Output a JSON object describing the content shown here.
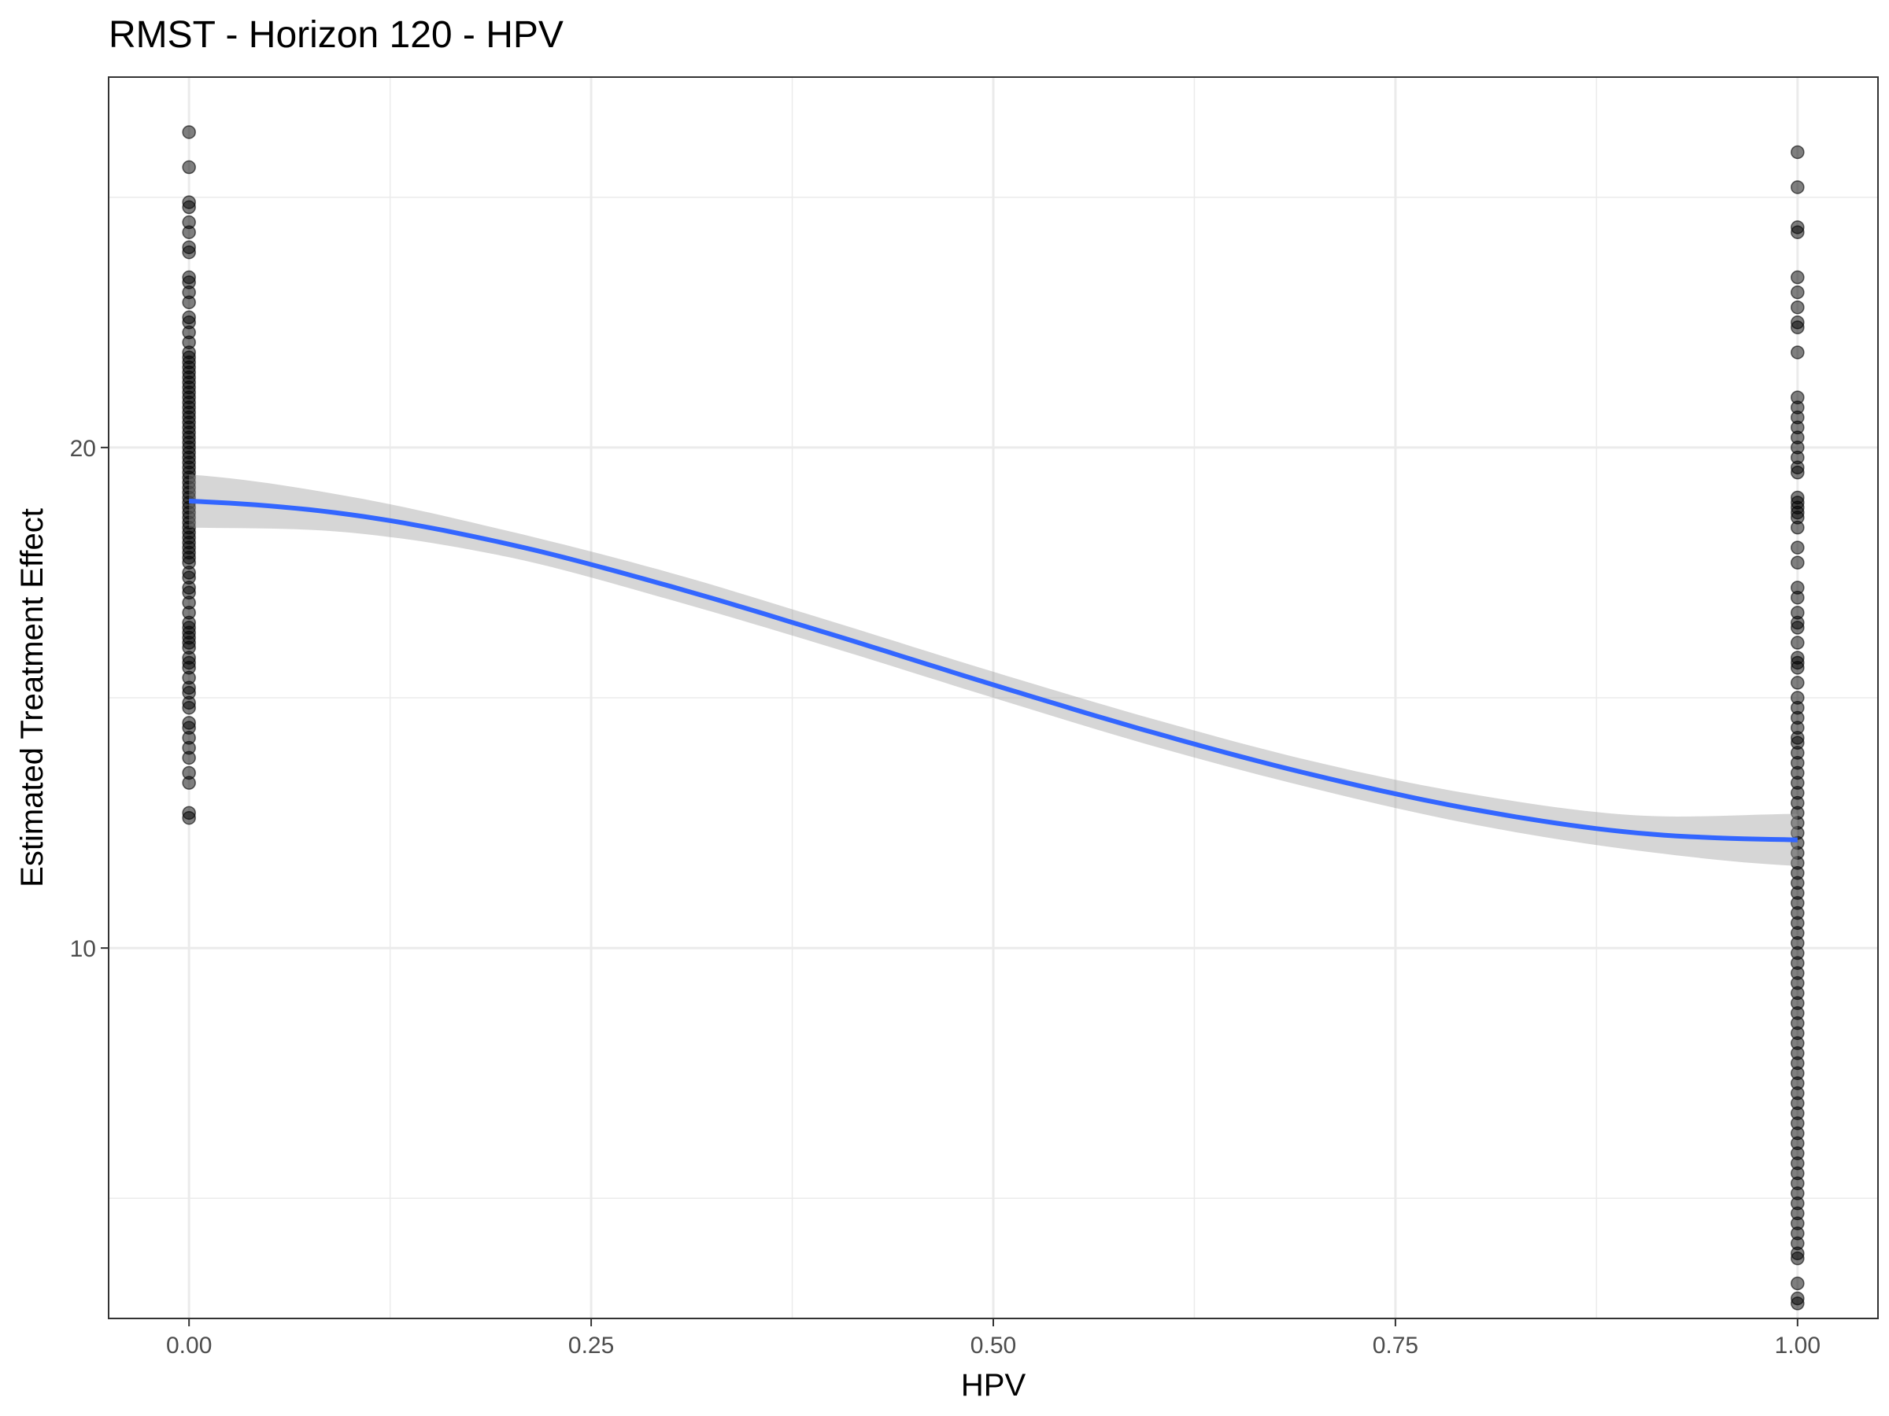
{
  "chart_data": {
    "type": "scatter",
    "title": "RMST - Horizon 120 - HPV",
    "xlabel": "HPV",
    "ylabel": "Estimated Treatment Effect",
    "xlim": [
      -0.05,
      1.05
    ],
    "ylim": [
      2.6,
      27.4
    ],
    "x_ticks": [
      0.0,
      0.25,
      0.5,
      0.75,
      1.0
    ],
    "x_tick_labels": [
      "0.00",
      "0.25",
      "0.50",
      "0.75",
      "1.00"
    ],
    "y_ticks": [
      10,
      20
    ],
    "y_tick_labels": [
      "10",
      "20"
    ],
    "x_minor_ticks": [
      0.125,
      0.375,
      0.625,
      0.875
    ],
    "y_minor_ticks": [
      5,
      15,
      25
    ],
    "grid": true,
    "legend": "none",
    "colors": {
      "points": "#000000",
      "smooth_line": "#3366FF",
      "confidence_band": "#999999",
      "grid": "#EBEBEB",
      "border": "#333333"
    },
    "point_groups": [
      {
        "x": 0.0,
        "y": [
          26.3,
          25.6,
          24.9,
          24.8,
          24.5,
          24.3,
          24.0,
          23.9,
          23.4,
          23.3,
          23.1,
          22.9,
          22.6,
          22.5,
          22.3,
          22.1,
          21.9,
          21.8,
          21.7,
          21.6,
          21.5,
          21.4,
          21.3,
          21.2,
          21.1,
          21.0,
          20.9,
          20.8,
          20.7,
          20.6,
          20.5,
          20.4,
          20.3,
          20.2,
          20.1,
          20.0,
          19.9,
          19.8,
          19.7,
          19.6,
          19.5,
          19.4,
          19.3,
          19.2,
          19.1,
          19.0,
          18.9,
          18.8,
          18.7,
          18.6,
          18.5,
          18.4,
          18.3,
          18.2,
          18.1,
          18.0,
          17.9,
          17.8,
          17.7,
          17.5,
          17.4,
          17.2,
          17.1,
          16.9,
          16.7,
          16.5,
          16.4,
          16.3,
          16.2,
          16.1,
          16.0,
          15.8,
          15.7,
          15.6,
          15.4,
          15.2,
          15.1,
          14.9,
          14.8,
          14.5,
          14.4,
          14.2,
          14.0,
          13.8,
          13.5,
          13.3,
          12.7,
          12.6
        ]
      },
      {
        "x": 1.0,
        "y": [
          25.9,
          25.2,
          24.4,
          24.3,
          23.4,
          23.1,
          22.8,
          22.5,
          22.4,
          21.9,
          21.0,
          20.8,
          20.6,
          20.4,
          20.2,
          20.0,
          19.8,
          19.6,
          19.5,
          19.0,
          18.9,
          18.8,
          18.7,
          18.6,
          18.4,
          18.0,
          17.7,
          17.2,
          17.0,
          16.7,
          16.5,
          16.4,
          16.1,
          15.8,
          15.7,
          15.6,
          15.3,
          15.0,
          14.8,
          14.6,
          14.4,
          14.2,
          14.1,
          13.9,
          13.7,
          13.5,
          13.3,
          13.1,
          12.9,
          12.7,
          12.5,
          12.3,
          12.1,
          11.9,
          11.7,
          11.5,
          11.3,
          11.1,
          10.9,
          10.7,
          10.5,
          10.3,
          10.1,
          9.9,
          9.7,
          9.5,
          9.3,
          9.1,
          8.9,
          8.7,
          8.5,
          8.3,
          8.1,
          7.9,
          7.7,
          7.5,
          7.3,
          7.1,
          6.9,
          6.7,
          6.5,
          6.3,
          6.1,
          5.9,
          5.7,
          5.5,
          5.3,
          5.1,
          4.9,
          4.7,
          4.5,
          4.3,
          4.1,
          3.9,
          3.8,
          3.3,
          3.0,
          2.9
        ]
      }
    ],
    "smooth": {
      "x": [
        0.0,
        0.1,
        0.2,
        0.3,
        0.4,
        0.5,
        0.6,
        0.7,
        0.8,
        0.9,
        1.0
      ],
      "y": [
        18.93,
        18.66,
        18.06,
        17.22,
        16.26,
        15.26,
        14.3,
        13.45,
        12.76,
        12.3,
        12.16
      ],
      "lower": [
        18.4,
        18.3,
        17.8,
        16.95,
        16.0,
        15.0,
        14.03,
        13.18,
        12.46,
        11.95,
        11.64
      ],
      "upper": [
        19.46,
        19.02,
        18.32,
        17.49,
        16.52,
        15.52,
        14.57,
        13.72,
        13.06,
        12.65,
        12.68
      ]
    }
  }
}
